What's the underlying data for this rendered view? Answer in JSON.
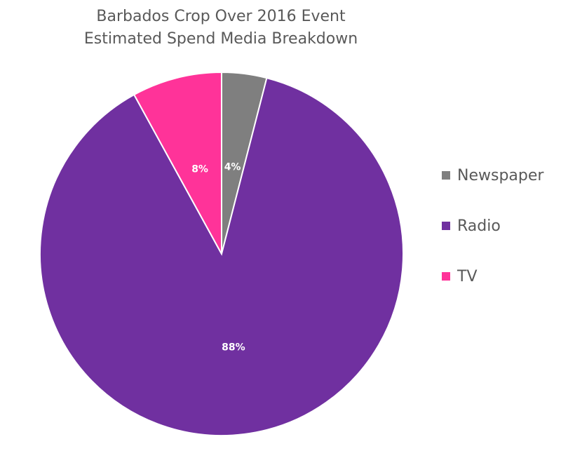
{
  "chart_data": {
    "type": "pie",
    "title_line1": "Barbados Crop Over 2016 Event",
    "title_line2": "Estimated Spend Media Breakdown",
    "categories": [
      "Newspaper",
      "Radio",
      "TV"
    ],
    "values": [
      4,
      88,
      8
    ],
    "labels": [
      "4%",
      "88%",
      "8%"
    ],
    "colors": [
      "#7f7f7f",
      "#7030a0",
      "#ff3399"
    ],
    "legend_position": "right"
  }
}
